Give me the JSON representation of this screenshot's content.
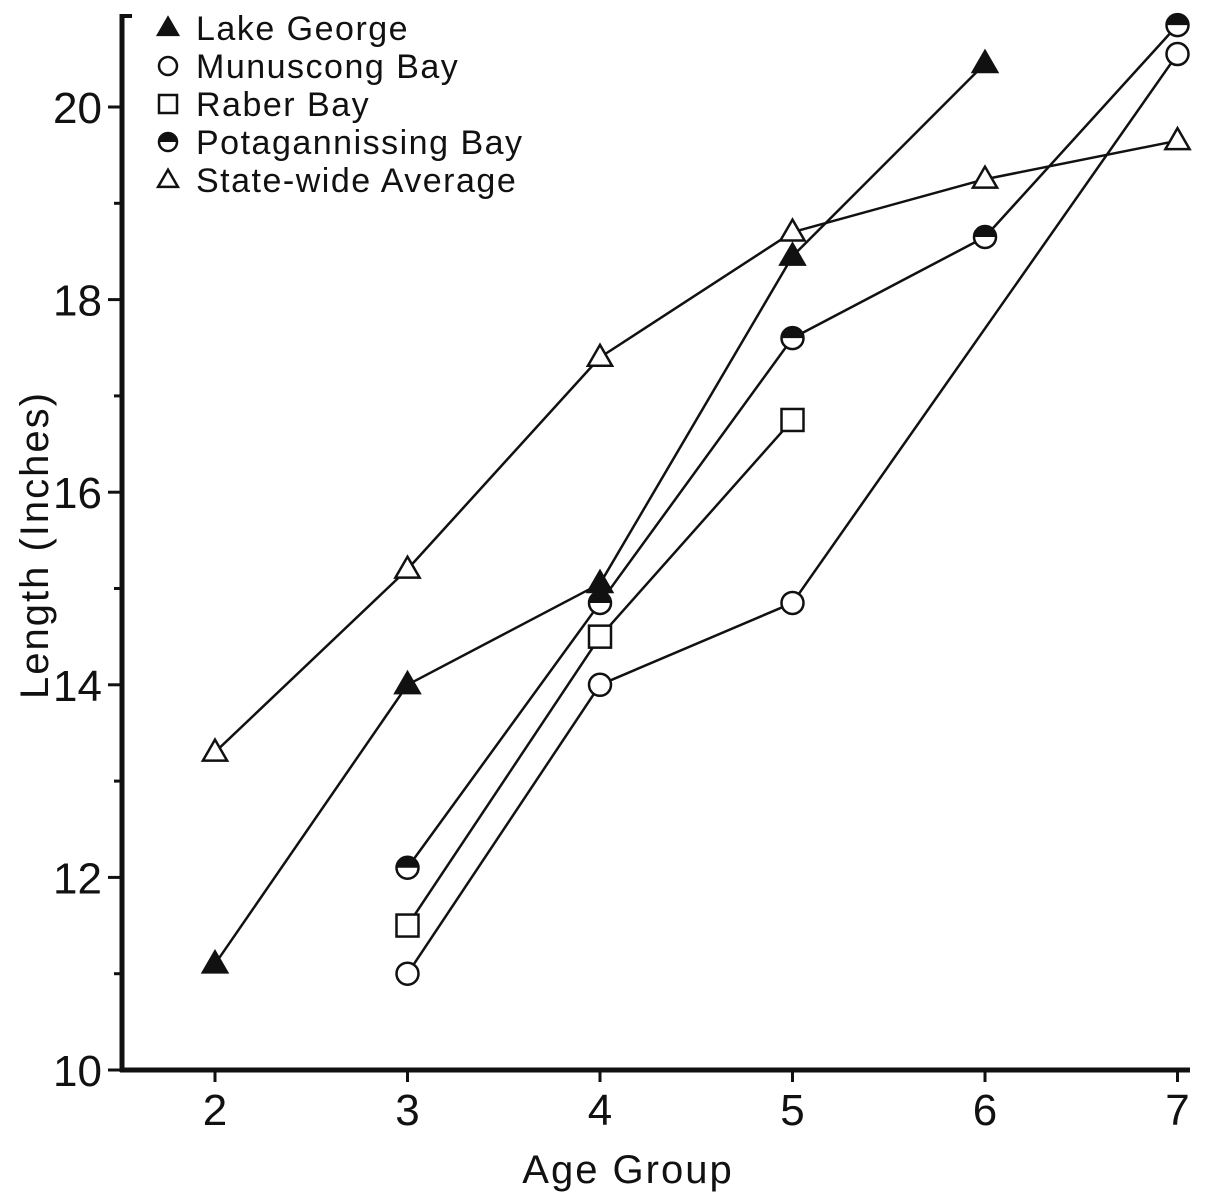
{
  "chart_data": {
    "type": "line",
    "xlabel": "Age Group",
    "ylabel": "Length (Inches)",
    "xlim": [
      1.5,
      7
    ],
    "ylim": [
      10,
      21
    ],
    "xticks": [
      2,
      3,
      4,
      5,
      6,
      7
    ],
    "yticks_major": [
      10,
      12,
      14,
      16,
      18,
      20
    ],
    "yticks_minor": [
      11,
      13,
      15,
      17,
      19
    ],
    "grid": false,
    "legend_position": "top-left",
    "series": [
      {
        "name": "Lake George",
        "marker": "filled-triangle",
        "x": [
          2,
          3,
          4,
          5,
          6
        ],
        "y": [
          11.1,
          14.0,
          15.05,
          18.45,
          20.45
        ]
      },
      {
        "name": "Munuscong Bay",
        "marker": "open-circle",
        "x": [
          3,
          4,
          5,
          7
        ],
        "y": [
          11.0,
          14.0,
          14.85,
          20.55
        ]
      },
      {
        "name": "Raber Bay",
        "marker": "open-square",
        "x": [
          3,
          4,
          5
        ],
        "y": [
          11.5,
          14.5,
          16.75
        ]
      },
      {
        "name": "Potagannissing Bay",
        "marker": "half-filled-circle",
        "x": [
          3,
          4,
          5,
          6,
          7
        ],
        "y": [
          12.1,
          14.85,
          17.6,
          18.65,
          20.85
        ]
      },
      {
        "name": "State-wide Average",
        "marker": "open-triangle",
        "x": [
          2,
          3,
          4,
          5,
          6,
          7
        ],
        "y": [
          13.3,
          15.2,
          17.4,
          18.7,
          19.25,
          19.65
        ]
      }
    ]
  },
  "colors": {
    "ink": "#111111",
    "background": "#ffffff"
  }
}
